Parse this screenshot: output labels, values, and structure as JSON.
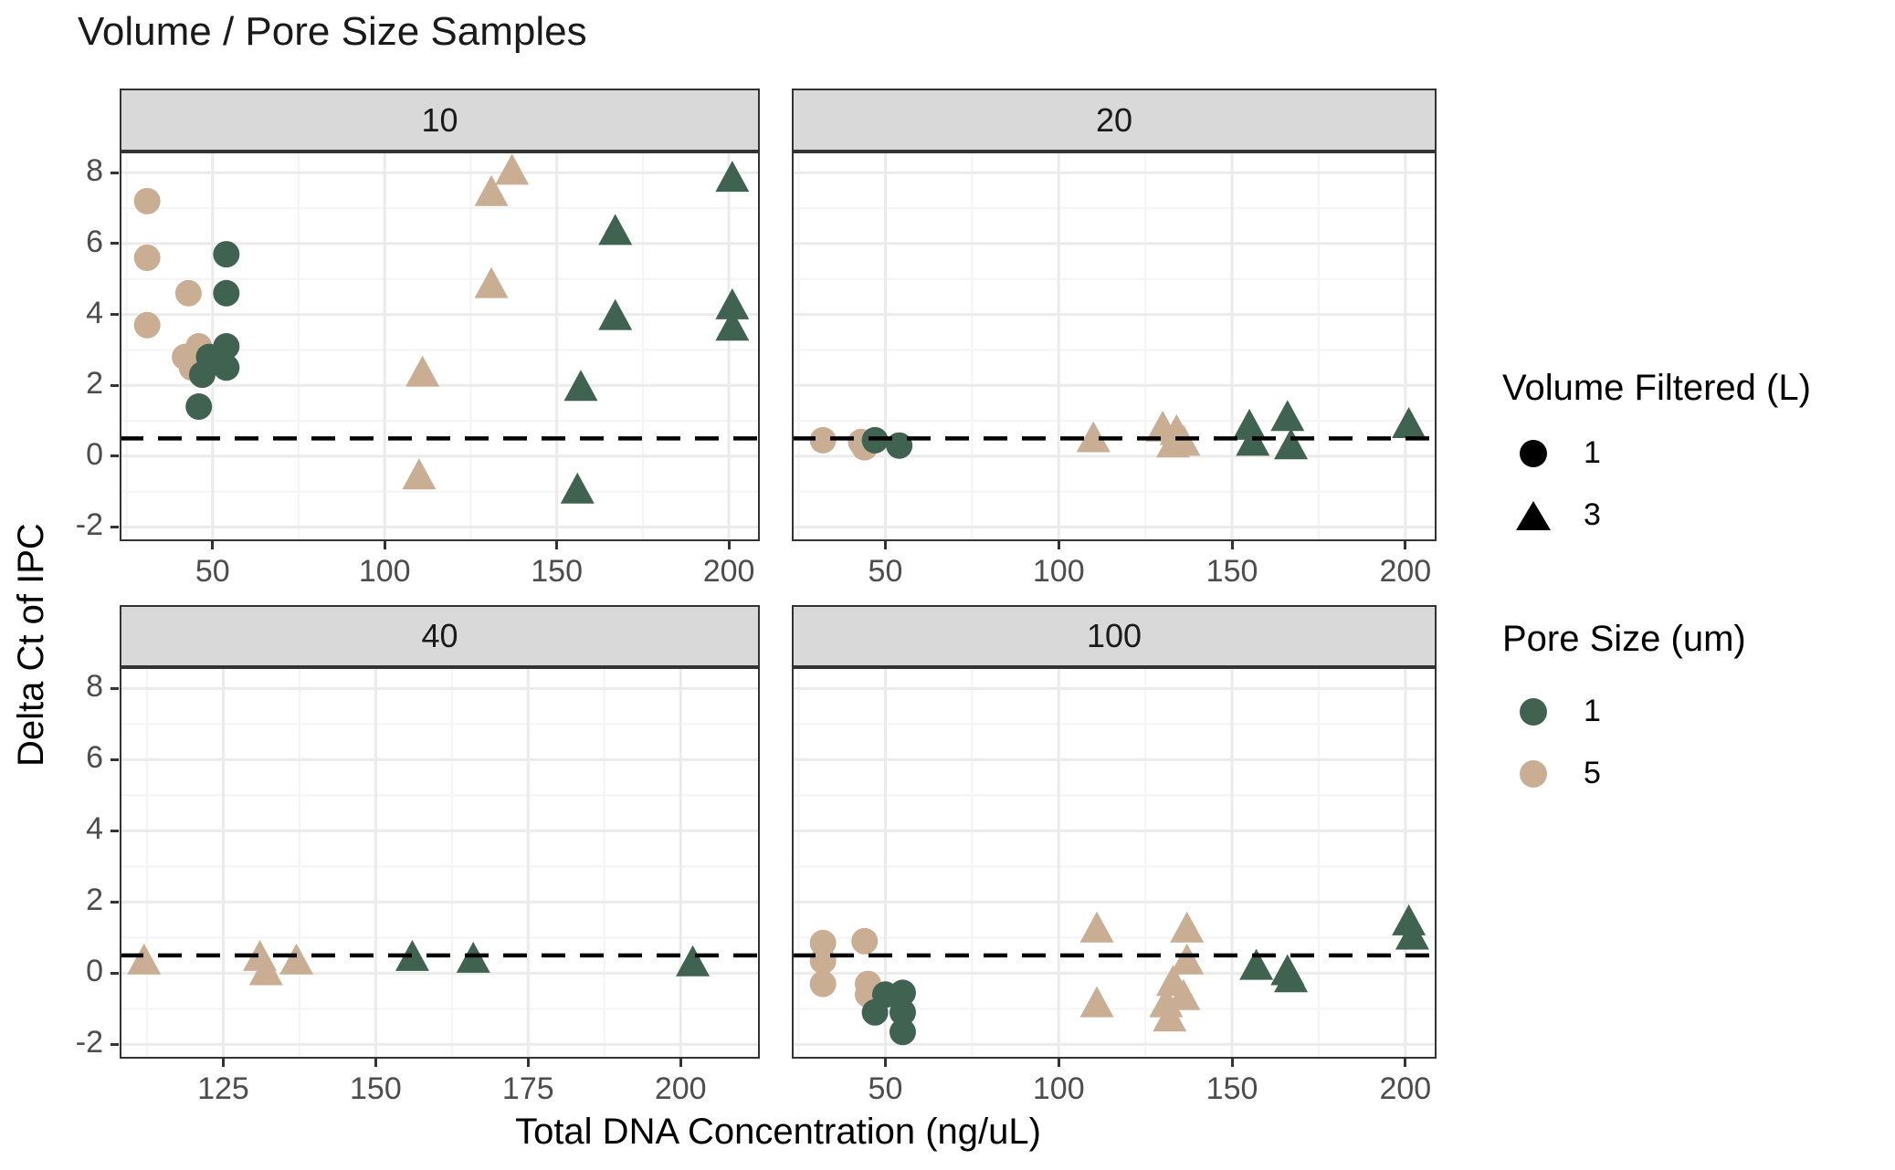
{
  "title": "Volume / Pore Size Samples",
  "axes": {
    "x_title": "Total DNA Concentration (ng/uL)",
    "y_title": "Delta Ct of IPC"
  },
  "colors": {
    "pore_1_green": "#406351",
    "pore_5_tan": "#C9AE94",
    "legend_black": "#000000",
    "strip_bg": "#d9d9d9",
    "panel_border": "#333333",
    "grid_major": "#ebebeb",
    "grid_minor": "#f4f4f4",
    "tick_text": "#4d4d4d",
    "reference_line": "#000000"
  },
  "legends": [
    {
      "title": "Volume Filtered (L)",
      "items": [
        {
          "symbol": "circle",
          "color": "#000000",
          "label": "1"
        },
        {
          "symbol": "triangle",
          "color": "#000000",
          "label": "3"
        }
      ]
    },
    {
      "title": "Pore Size (um)",
      "items": [
        {
          "symbol": "circle",
          "color": "#406351",
          "label": "1"
        },
        {
          "symbol": "circle",
          "color": "#C9AE94",
          "label": "5"
        }
      ]
    }
  ],
  "chart_data": {
    "type": "scatter",
    "grid": "on",
    "legend_position": "right",
    "reference_line_y": 0.5,
    "reference_line_style": "dashed",
    "y_domain": [
      -2.4,
      8.6
    ],
    "y_ticks": [
      -2,
      0,
      2,
      4,
      6,
      8
    ],
    "y_minor": [
      -1,
      1,
      3,
      5,
      7
    ],
    "facets": [
      {
        "label": "10",
        "x_domain": [
          23,
          209
        ],
        "x_ticks": [
          50,
          100,
          150,
          200
        ],
        "x_minor": [
          25,
          75,
          125,
          175
        ],
        "series": [
          {
            "name": "pore5-vol1",
            "pore_size_um": "5",
            "volume_filtered_l": "1",
            "shape": "circle",
            "color": "tan",
            "points": [
              [
                31,
                7.2
              ],
              [
                31,
                5.6
              ],
              [
                43,
                4.6
              ],
              [
                31,
                3.7
              ],
              [
                46,
                3.1
              ],
              [
                42,
                2.8
              ],
              [
                44,
                2.5
              ]
            ]
          },
          {
            "name": "pore1-vol1",
            "pore_size_um": "1",
            "volume_filtered_l": "1",
            "shape": "circle",
            "color": "green",
            "points": [
              [
                54,
                5.7
              ],
              [
                54,
                4.6
              ],
              [
                54,
                3.1
              ],
              [
                49,
                2.8
              ],
              [
                54,
                2.5
              ],
              [
                47,
                2.3
              ],
              [
                46,
                1.4
              ]
            ]
          },
          {
            "name": "pore5-vol3",
            "pore_size_um": "5",
            "volume_filtered_l": "3",
            "shape": "triangle",
            "color": "tan",
            "points": [
              [
                137,
                8.1
              ],
              [
                131,
                7.5
              ],
              [
                131,
                4.9
              ],
              [
                111,
                2.4
              ],
              [
                110,
                -0.5
              ]
            ]
          },
          {
            "name": "pore1-vol3",
            "pore_size_um": "1",
            "volume_filtered_l": "3",
            "shape": "triangle",
            "color": "green",
            "points": [
              [
                201,
                7.9
              ],
              [
                167,
                6.4
              ],
              [
                167,
                4.0
              ],
              [
                201,
                4.3
              ],
              [
                201,
                3.7
              ],
              [
                157,
                2.0
              ],
              [
                156,
                -0.9
              ]
            ]
          }
        ]
      },
      {
        "label": "20",
        "x_domain": [
          23,
          209
        ],
        "x_ticks": [
          50,
          100,
          150,
          200
        ],
        "x_minor": [
          25,
          75,
          125,
          175
        ],
        "series": [
          {
            "name": "pore5-vol1",
            "pore_size_um": "5",
            "volume_filtered_l": "1",
            "shape": "circle",
            "color": "tan",
            "points": [
              [
                32,
                0.45
              ],
              [
                43,
                0.4
              ],
              [
                44,
                0.25
              ]
            ]
          },
          {
            "name": "pore1-vol1",
            "pore_size_um": "1",
            "volume_filtered_l": "1",
            "shape": "circle",
            "color": "green",
            "points": [
              [
                47,
                0.45
              ],
              [
                54,
                0.3
              ]
            ]
          },
          {
            "name": "pore5-vol3",
            "pore_size_um": "5",
            "volume_filtered_l": "3",
            "shape": "triangle",
            "color": "tan",
            "points": [
              [
                110,
                0.55
              ],
              [
                130,
                0.85
              ],
              [
                134,
                0.75
              ],
              [
                133,
                0.4
              ],
              [
                136,
                0.45
              ]
            ]
          },
          {
            "name": "pore1-vol3",
            "pore_size_um": "1",
            "volume_filtered_l": "3",
            "shape": "triangle",
            "color": "green",
            "points": [
              [
                155,
                0.9
              ],
              [
                156,
                0.45
              ],
              [
                166,
                1.15
              ],
              [
                167,
                0.35
              ],
              [
                201,
                0.95
              ]
            ]
          }
        ]
      },
      {
        "label": "40",
        "x_domain": [
          108,
          213
        ],
        "x_ticks": [
          125,
          150,
          175,
          200
        ],
        "x_minor": [
          112.5,
          137.5,
          162.5,
          187.5
        ],
        "series": [
          {
            "name": "pore5-vol3",
            "pore_size_um": "5",
            "volume_filtered_l": "3",
            "shape": "triangle",
            "color": "tan",
            "points": [
              [
                112,
                0.4
              ],
              [
                131,
                0.5
              ],
              [
                132,
                0.1
              ],
              [
                137,
                0.4
              ]
            ]
          },
          {
            "name": "pore1-vol3",
            "pore_size_um": "1",
            "volume_filtered_l": "3",
            "shape": "triangle",
            "color": "green",
            "points": [
              [
                156,
                0.5
              ],
              [
                166,
                0.45
              ],
              [
                202,
                0.35
              ]
            ]
          }
        ]
      },
      {
        "label": "100",
        "x_domain": [
          23,
          209
        ],
        "x_ticks": [
          50,
          100,
          150,
          200
        ],
        "x_minor": [
          25,
          75,
          125,
          175
        ],
        "series": [
          {
            "name": "pore5-vol1",
            "pore_size_um": "5",
            "volume_filtered_l": "1",
            "shape": "circle",
            "color": "tan",
            "points": [
              [
                32,
                0.85
              ],
              [
                32,
                0.35
              ],
              [
                32,
                -0.3
              ],
              [
                44,
                0.9
              ],
              [
                45,
                -0.3
              ],
              [
                45,
                -0.6
              ]
            ]
          },
          {
            "name": "pore1-vol1",
            "pore_size_um": "1",
            "volume_filtered_l": "1",
            "shape": "circle",
            "color": "green",
            "points": [
              [
                47,
                -1.1
              ],
              [
                50,
                -0.6
              ],
              [
                55,
                -0.55
              ],
              [
                55,
                -1.1
              ],
              [
                55,
                -1.65
              ]
            ]
          },
          {
            "name": "pore5-vol3",
            "pore_size_um": "5",
            "volume_filtered_l": "3",
            "shape": "triangle",
            "color": "tan",
            "points": [
              [
                111,
                1.3
              ],
              [
                111,
                -0.8
              ],
              [
                137,
                1.3
              ],
              [
                137,
                0.4
              ],
              [
                133,
                -0.2
              ],
              [
                136,
                -0.6
              ],
              [
                131,
                -0.8
              ],
              [
                132,
                -1.2
              ]
            ]
          },
          {
            "name": "pore1-vol3",
            "pore_size_um": "1",
            "volume_filtered_l": "3",
            "shape": "triangle",
            "color": "green",
            "points": [
              [
                157,
                0.25
              ],
              [
                166,
                0.1
              ],
              [
                167,
                -0.1
              ],
              [
                201,
                1.5
              ],
              [
                202,
                1.1
              ]
            ]
          }
        ]
      }
    ]
  }
}
